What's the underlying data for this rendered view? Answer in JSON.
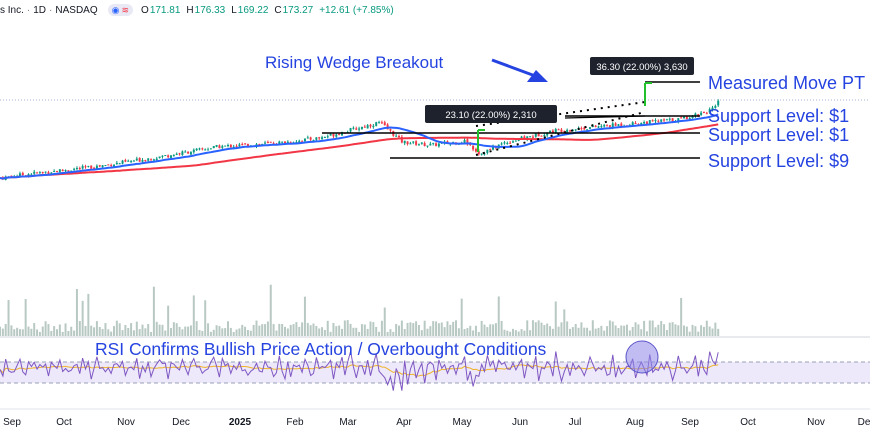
{
  "header": {
    "symbol": "s Inc.",
    "interval": "1D",
    "exchange": "NASDAQ",
    "open_label": "O",
    "open": "171.81",
    "high_label": "H",
    "high": "176.33",
    "low_label": "L",
    "low": "169.22",
    "close_label": "C",
    "close": "173.27",
    "change": "+12.61 (+7.85%)"
  },
  "annotations": {
    "title": "Rising Wedge Breakout",
    "measured_move": "Measured Move PT",
    "support_1": "Support Level: $1",
    "support_2": "Support Level: $1",
    "support_3": "Support Level: $9",
    "rsi_note": "RSI Confirms Bullish Price Action / Overbought Conditions",
    "box_1": "23.10 (22.00%) 2,310",
    "box_2": "36.30 (22.00%) 3,630"
  },
  "colors": {
    "price_up": "#089981",
    "price_down": "#f23645",
    "ma_fast": "#2962ff",
    "ma_slow": "#f23645",
    "volume": "#b8c9c4",
    "rsi": "#7e57c2",
    "rsi_ma": "#f0b429",
    "annotation": "#2543e0",
    "measure": "#22c02b"
  },
  "chart_data": {
    "type": "candlestick",
    "x_ticks": [
      "Sep",
      "Oct",
      "Nov",
      "Dec",
      "2025",
      "Feb",
      "Mar",
      "Apr",
      "May",
      "Jun",
      "Jul",
      "Aug",
      "Sep",
      "Oct",
      "Nov",
      "De"
    ],
    "price_series": [
      {
        "date": "2024-08-15",
        "close": 74
      },
      {
        "date": "2024-09-01",
        "close": 80
      },
      {
        "date": "2024-10-01",
        "close": 88
      },
      {
        "date": "2024-11-01",
        "close": 100
      },
      {
        "date": "2024-12-01",
        "close": 113
      },
      {
        "date": "2025-01-01",
        "close": 118
      },
      {
        "date": "2025-01-20",
        "close": 124
      },
      {
        "date": "2025-02-18",
        "close": 143
      },
      {
        "date": "2025-03-01",
        "close": 119
      },
      {
        "date": "2025-03-15",
        "close": 115
      },
      {
        "date": "2025-04-01",
        "close": 120
      },
      {
        "date": "2025-04-08",
        "close": 104
      },
      {
        "date": "2025-04-20",
        "close": 118
      },
      {
        "date": "2025-05-15",
        "close": 133
      },
      {
        "date": "2025-06-15",
        "close": 140
      },
      {
        "date": "2025-07-15",
        "close": 147
      },
      {
        "date": "2025-08-01",
        "close": 160
      },
      {
        "date": "2025-08-04",
        "close": 173.27
      }
    ],
    "ma_fast_label": "",
    "ma_slow_label": "",
    "levels": [
      {
        "name": "measured_move",
        "value": 196
      },
      {
        "name": "support_1",
        "value": 161
      },
      {
        "name": "support_2",
        "value": 153
      },
      {
        "name": "support_3",
        "value": 99
      }
    ],
    "rsi_bounds": [
      30,
      70
    ]
  }
}
